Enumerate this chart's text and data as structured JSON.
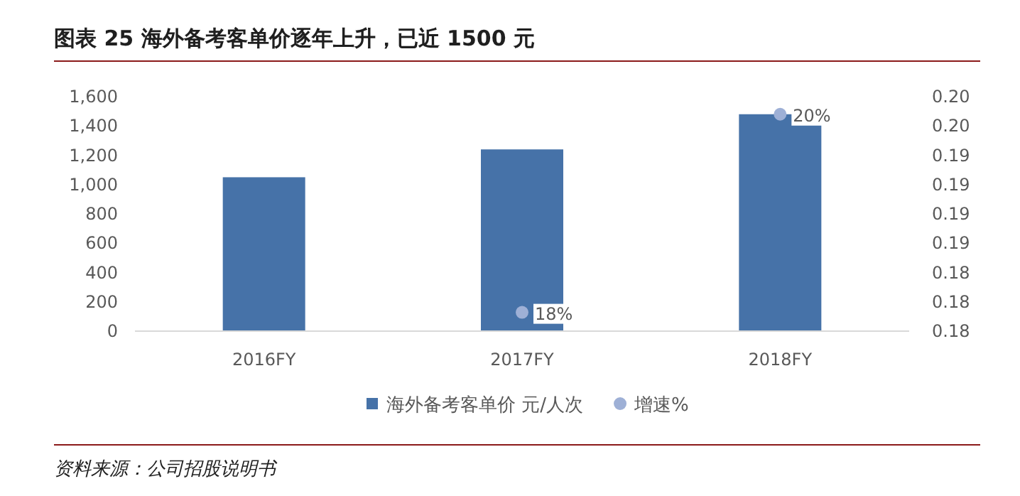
{
  "chart_data": {
    "type": "bar",
    "title": "图表 25   海外备考客单价逐年上升，已近 1500 元",
    "annotations": [
      "资料来源：公司招股说明书"
    ],
    "categories": [
      "2016FY",
      "2017FY",
      "2018FY"
    ],
    "series": [
      {
        "name": "海外备考客单价 元/人次",
        "color": "#4672a8",
        "values": [
          1050,
          1240,
          1480
        ]
      },
      {
        "name": "增速%",
        "type": "scatter",
        "axis": "y2",
        "color": "#9eb0d6",
        "values": [
          null,
          0.1816,
          0.1985
        ],
        "value_labels": [
          null,
          "18%",
          "20%"
        ]
      }
    ],
    "ylim": [
      0,
      1600
    ],
    "yticks": [
      0,
      200,
      400,
      600,
      800,
      {
        "value": 1000,
        "label": "1,000"
      },
      {
        "value": 1200,
        "label": "1,200"
      },
      {
        "value": 1400,
        "label": "1,400"
      },
      {
        "value": 1600,
        "label": "1,600"
      }
    ],
    "y2lim": [
      0.18,
      0.2
    ],
    "y2ticks": [
      {
        "value": 0.18,
        "label": "0.18"
      },
      {
        "value": 0.1825,
        "label": "0.18"
      },
      {
        "value": 0.185,
        "label": "0.18"
      },
      {
        "value": 0.1875,
        "label": "0.19"
      },
      {
        "value": 0.19,
        "label": "0.19"
      },
      {
        "value": 0.1925,
        "label": "0.19"
      },
      {
        "value": 0.195,
        "label": "0.19"
      },
      {
        "value": 0.1975,
        "label": "0.20"
      },
      {
        "value": 0.2,
        "label": "0.20"
      }
    ],
    "legend": "bottom",
    "marker": "circle",
    "grid": false
  }
}
